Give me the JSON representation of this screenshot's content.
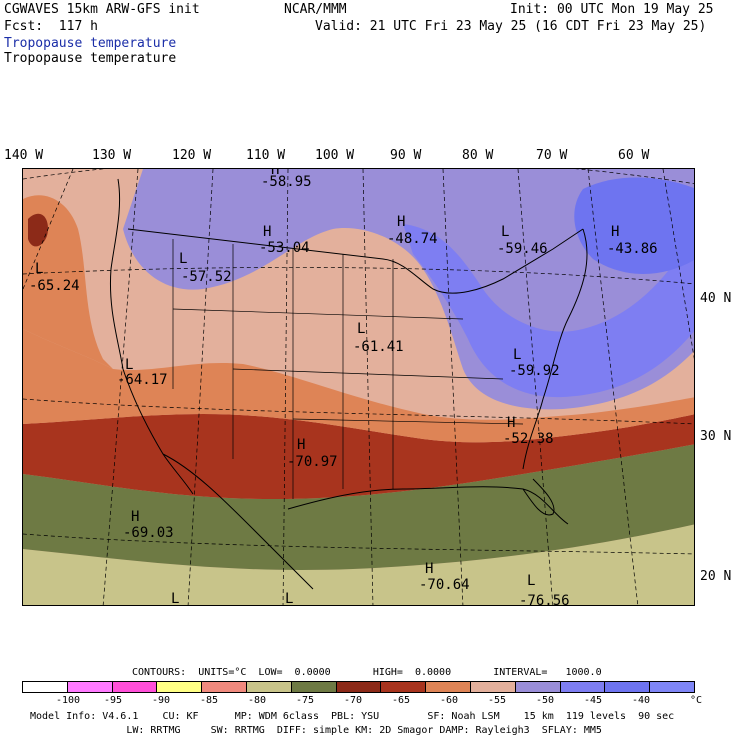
{
  "header": {
    "model_line": "CGWAVES 15km ARW-GFS init",
    "fcst_line": "Fcst:  117 h",
    "source": "NCAR/MMM",
    "init_line": "Init: 00 UTC Mon 19 May 25",
    "valid_line": "Valid: 21 UTC Fri 23 May 25 (16 CDT Fri 23 May 25)",
    "field_title_1": "Tropopause temperature",
    "field_title_2": "Tropopause temperature"
  },
  "map": {
    "lon_labels": [
      "140 W",
      "130 W",
      "120 W",
      "110 W",
      "100 W",
      "90 W",
      "80 W",
      "70 W",
      "60 W"
    ],
    "lat_labels": [
      "40 N",
      "30 N",
      "20 N"
    ],
    "centers": [
      {
        "type": "H",
        "value": "-58.95"
      },
      {
        "type": "H",
        "value": "-53.04"
      },
      {
        "type": "H",
        "value": "-48.74"
      },
      {
        "type": "L",
        "value": "-59.46"
      },
      {
        "type": "H",
        "value": "-43.86"
      },
      {
        "type": "L",
        "value": "-65.24"
      },
      {
        "type": "L",
        "value": "-57.52"
      },
      {
        "type": "L",
        "value": "-61.41"
      },
      {
        "type": "L",
        "value": "-64.17"
      },
      {
        "type": "L",
        "value": "-59.92"
      },
      {
        "type": "H",
        "value": "-52.38"
      },
      {
        "type": "H",
        "value": "-70.97"
      },
      {
        "type": "H",
        "value": "-69.03"
      },
      {
        "type": "H",
        "value": "-70.64"
      },
      {
        "type": "L",
        "value": "-76.56"
      },
      {
        "type": "L",
        "value": ""
      },
      {
        "type": "L",
        "value": ""
      }
    ]
  },
  "legend": {
    "contours_line": "CONTOURS:  UNITS=°C  LOW=  0.0000       HIGH=  0.0000       INTERVAL=   1000.0",
    "colors": [
      "#ffffff",
      "#ff7aff",
      "#ff4fd8",
      "#ffff85",
      "#f08a7e",
      "#c8c48a",
      "#6e7a44",
      "#8c2a18",
      "#a8341e",
      "#de8456",
      "#e3b09c",
      "#9a8ed8",
      "#7e7ef2",
      "#6e74f0",
      "#7f86f6"
    ],
    "ticks": [
      "-100",
      "-95",
      "-90",
      "-85",
      "-80",
      "-75",
      "-70",
      "-65",
      "-60",
      "-55",
      "-50",
      "-45",
      "-40",
      "°C"
    ]
  },
  "footer": {
    "line1": "Model Info: V4.6.1    CU: KF      MP: WDM 6class  PBL: YSU        SF: Noah LSM    15 km  119 levels  90 sec",
    "line2": "                LW: RRTMG     SW: RRTMG  DIFF: simple KM: 2D Smagor DAMP: Rayleigh3  SFLAY: MM5"
  },
  "colors": {
    "title_blue": "#1b2ea8",
    "band_cold_blue": "#7e7ef2",
    "band_light_pink": "#e3b09c",
    "band_orange": "#de8456",
    "band_red": "#a8341e",
    "band_olive": "#6e7a44",
    "band_khaki": "#c8c48a"
  }
}
